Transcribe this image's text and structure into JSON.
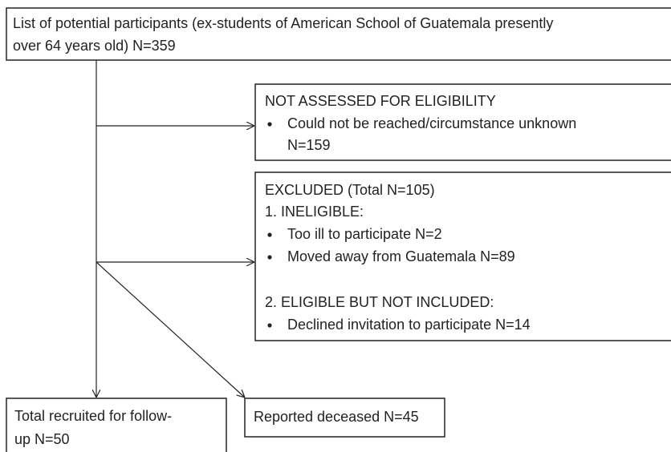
{
  "top": {
    "lines": [
      "List of potential participants (ex-students of American School of Guatemala presently",
      "over 64 years old) N=359"
    ]
  },
  "not_assessed": {
    "heading": "NOT ASSESSED FOR ELIGIBILITY",
    "items": [
      [
        "Could not be reached/circumstance unknown",
        "N=159"
      ]
    ]
  },
  "excluded": {
    "heading": "EXCLUDED (Total N=105)",
    "ineligible": {
      "heading": "1. INELIGIBLE:",
      "items": [
        "Too ill to participate N=2",
        "Moved away from Guatemala N=89"
      ]
    },
    "eligible_not_included": {
      "heading": "2. ELIGIBLE BUT NOT INCLUDED:",
      "items": [
        "Declined invitation to participate N=14"
      ]
    }
  },
  "recruited": {
    "lines": [
      "Total recruited for follow-",
      "up N=50"
    ]
  },
  "deceased": {
    "text": "Reported deceased N=45"
  }
}
